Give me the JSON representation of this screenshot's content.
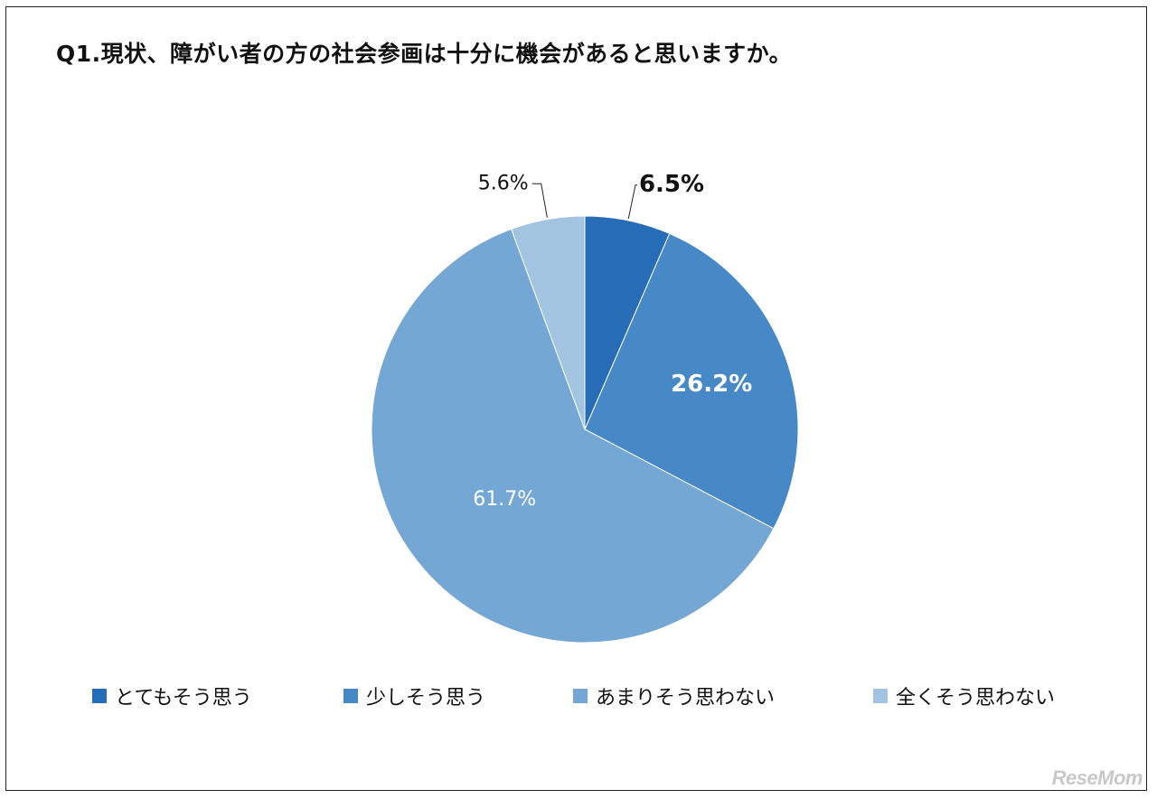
{
  "title": "Q1.現状、障がい者の方の社会参画は十分に機会があると思いますか。",
  "chart_data": {
    "type": "pie",
    "start_angle_deg": 0,
    "direction": "clockwise",
    "slices": [
      {
        "label": "とてもそう思う",
        "value": 6.5,
        "display": "6.5%",
        "color": "#276cb6",
        "label_style": "outside-bold"
      },
      {
        "label": "少しそう思う",
        "value": 26.2,
        "display": "26.2%",
        "color": "#4689c6",
        "label_style": "inside-bold"
      },
      {
        "label": "あまりそう思わない",
        "value": 61.7,
        "display": "61.7%",
        "color": "#74a7d4",
        "label_style": "inside"
      },
      {
        "label": "全くそう思わない",
        "value": 5.6,
        "display": "5.6%",
        "color": "#a2c4e1",
        "label_style": "outside"
      }
    ],
    "legend_position": "bottom"
  },
  "watermark": "ReseMom"
}
